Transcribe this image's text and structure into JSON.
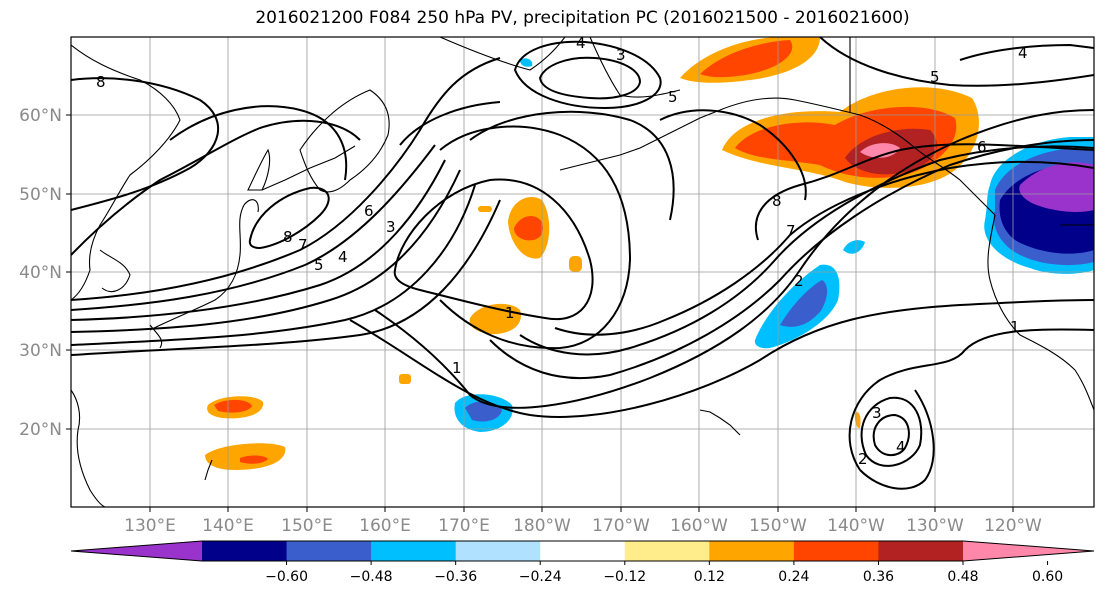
{
  "title": "2016021200 F084 250 hPa PV, precipitation PC (2016021500 - 2016021600)",
  "lat_labels": [
    "60°N",
    "50°N",
    "40°N",
    "30°N",
    "20°N"
  ],
  "lon_labels": [
    "130°E",
    "140°E",
    "150°E",
    "160°E",
    "170°E",
    "180°W",
    "170°W",
    "160°W",
    "150°W",
    "140°W",
    "130°W",
    "120°W"
  ],
  "contour_labels": [
    "8",
    "4",
    "3",
    "5",
    "8",
    "7",
    "5",
    "4",
    "6",
    "3",
    "1",
    "8",
    "7",
    "2",
    "5",
    "6",
    "4",
    "1",
    "1",
    "3",
    "4",
    "2"
  ],
  "colorbar": {
    "ticks": [
      "−0.60",
      "−0.48",
      "−0.36",
      "−0.24",
      "−0.12",
      "0.12",
      "0.24",
      "0.36",
      "0.48",
      "0.60"
    ],
    "colors": [
      "#9933cc",
      "#00008b",
      "#3a5fcd",
      "#00bfff",
      "#b0e2ff",
      "#ffffff",
      "#ffec8b",
      "#ffa500",
      "#ff4500",
      "#b22222",
      "#ff88aa"
    ]
  }
}
